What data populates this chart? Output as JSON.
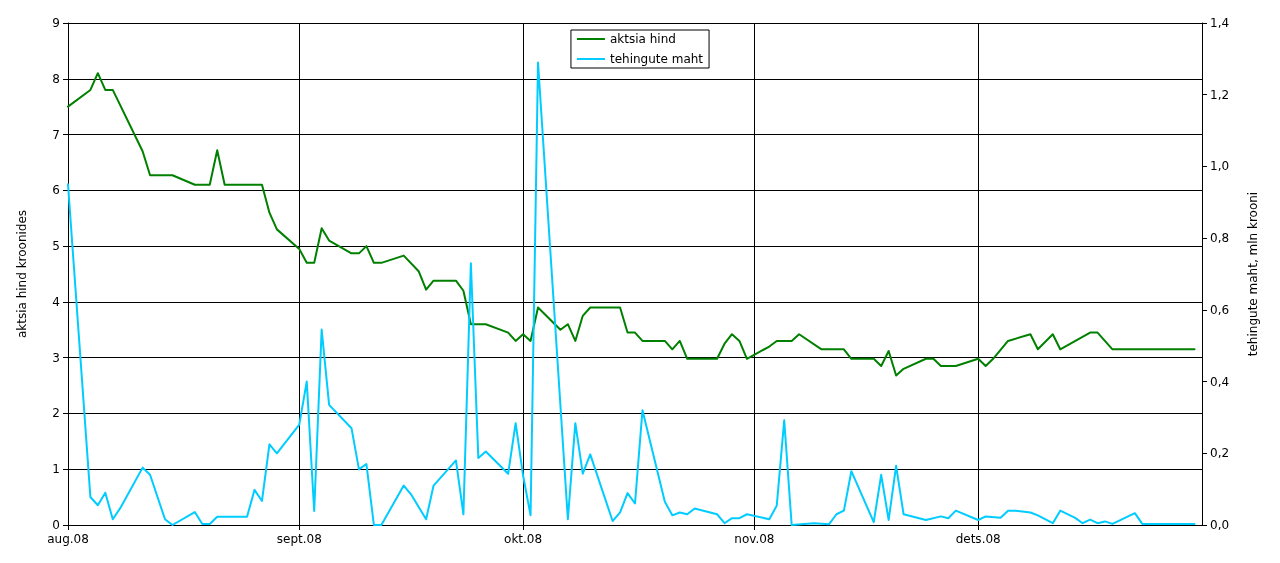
{
  "chart_data": {
    "type": "line",
    "xlabel": null,
    "ylabel": "aktsia hind kroonides",
    "y2label": "tehingute maht, mln krooni",
    "xlim": [
      "2008-08-01",
      "2008-12-31"
    ],
    "xticks": [
      {
        "value": "2008-08-01",
        "label": "aug.08"
      },
      {
        "value": "2008-09-01",
        "label": "sept.08"
      },
      {
        "value": "2008-10-01",
        "label": "okt.08"
      },
      {
        "value": "2008-11-01",
        "label": "nov.08"
      },
      {
        "value": "2008-12-01",
        "label": "dets.08"
      }
    ],
    "ylim": [
      0,
      9
    ],
    "yticks": [
      0,
      1,
      2,
      3,
      4,
      5,
      6,
      7,
      8,
      9
    ],
    "y2lim": [
      0,
      1.4
    ],
    "y2ticks": [
      {
        "value": 0,
        "label": "0,0"
      },
      {
        "value": 0.2,
        "label": "0,2"
      },
      {
        "value": 0.4,
        "label": "0,4"
      },
      {
        "value": 0.6,
        "label": "0,6"
      },
      {
        "value": 0.8,
        "label": "0,8"
      },
      {
        "value": 1.0,
        "label": "1,0"
      },
      {
        "value": 1.2,
        "label": "1,2"
      },
      {
        "value": 1.4,
        "label": "1,4"
      }
    ],
    "grid": true,
    "legend": "top",
    "marker": "none",
    "line_style": "solid",
    "series": [
      {
        "name": "aktsia hind",
        "color": "#008000",
        "x": [
          "2008-08-01",
          "2008-08-04",
          "2008-08-05",
          "2008-08-06",
          "2008-08-07",
          "2008-08-11",
          "2008-08-12",
          "2008-08-15",
          "2008-08-18",
          "2008-08-20",
          "2008-08-21",
          "2008-08-22",
          "2008-08-27",
          "2008-08-28",
          "2008-08-29",
          "2008-09-01",
          "2008-09-02",
          "2008-09-03",
          "2008-09-04",
          "2008-09-05",
          "2008-09-08",
          "2008-09-09",
          "2008-09-10",
          "2008-09-11",
          "2008-09-12",
          "2008-09-15",
          "2008-09-17",
          "2008-09-18",
          "2008-09-19",
          "2008-09-22",
          "2008-09-23",
          "2008-09-24",
          "2008-09-26",
          "2008-09-29",
          "2008-09-30",
          "2008-10-01",
          "2008-10-02",
          "2008-10-03",
          "2008-10-06",
          "2008-10-07",
          "2008-10-08",
          "2008-10-09",
          "2008-10-10",
          "2008-10-14",
          "2008-10-15",
          "2008-10-16",
          "2008-10-17",
          "2008-10-20",
          "2008-10-21",
          "2008-10-22",
          "2008-10-23",
          "2008-10-27",
          "2008-10-28",
          "2008-10-29",
          "2008-10-30",
          "2008-10-31",
          "2008-11-03",
          "2008-11-04",
          "2008-11-06",
          "2008-11-07",
          "2008-11-10",
          "2008-11-13",
          "2008-11-14",
          "2008-11-17",
          "2008-11-18",
          "2008-11-19",
          "2008-11-20",
          "2008-11-21",
          "2008-11-24",
          "2008-11-25",
          "2008-11-26",
          "2008-11-28",
          "2008-12-01",
          "2008-12-02",
          "2008-12-03",
          "2008-12-05",
          "2008-12-08",
          "2008-12-09",
          "2008-12-11",
          "2008-12-12",
          "2008-12-16",
          "2008-12-17",
          "2008-12-19",
          "2008-12-30"
        ],
        "values": [
          7.5,
          7.8,
          8.1,
          7.8,
          7.8,
          6.7,
          6.27,
          6.27,
          6.1,
          6.1,
          6.72,
          6.1,
          6.1,
          5.6,
          5.3,
          4.95,
          4.7,
          4.7,
          5.32,
          5.1,
          4.87,
          4.87,
          5.0,
          4.7,
          4.7,
          4.83,
          4.55,
          4.22,
          4.38,
          4.38,
          4.2,
          3.6,
          3.6,
          3.45,
          3.3,
          3.42,
          3.3,
          3.9,
          3.5,
          3.6,
          3.3,
          3.75,
          3.9,
          3.9,
          3.45,
          3.45,
          3.3,
          3.3,
          3.15,
          3.3,
          2.98,
          2.98,
          3.25,
          3.42,
          3.3,
          2.98,
          3.2,
          3.3,
          3.3,
          3.42,
          3.15,
          3.15,
          2.98,
          2.98,
          2.85,
          3.12,
          2.68,
          2.8,
          2.98,
          2.98,
          2.85,
          2.85,
          2.98,
          2.85,
          2.98,
          3.3,
          3.42,
          3.15,
          3.42,
          3.15,
          3.45,
          3.45,
          3.15,
          3.15
        ]
      },
      {
        "name": "tehingute maht",
        "color": "#00ccff",
        "axis": "y2",
        "x": [
          "2008-08-01",
          "2008-08-04",
          "2008-08-05",
          "2008-08-06",
          "2008-08-07",
          "2008-08-08",
          "2008-08-11",
          "2008-08-12",
          "2008-08-14",
          "2008-08-15",
          "2008-08-18",
          "2008-08-19",
          "2008-08-20",
          "2008-08-21",
          "2008-08-25",
          "2008-08-26",
          "2008-08-27",
          "2008-08-28",
          "2008-08-29",
          "2008-09-01",
          "2008-09-02",
          "2008-09-03",
          "2008-09-04",
          "2008-09-05",
          "2008-09-08",
          "2008-09-09",
          "2008-09-10",
          "2008-09-11",
          "2008-09-12",
          "2008-09-15",
          "2008-09-16",
          "2008-09-18",
          "2008-09-19",
          "2008-09-22",
          "2008-09-23",
          "2008-09-24",
          "2008-09-25",
          "2008-09-26",
          "2008-09-29",
          "2008-09-30",
          "2008-10-01",
          "2008-10-02",
          "2008-10-03",
          "2008-10-07",
          "2008-10-08",
          "2008-10-09",
          "2008-10-10",
          "2008-10-13",
          "2008-10-14",
          "2008-10-15",
          "2008-10-16",
          "2008-10-17",
          "2008-10-20",
          "2008-10-21",
          "2008-10-22",
          "2008-10-23",
          "2008-10-24",
          "2008-10-27",
          "2008-10-28",
          "2008-10-29",
          "2008-10-30",
          "2008-10-31",
          "2008-11-03",
          "2008-11-04",
          "2008-11-05",
          "2008-11-06",
          "2008-11-09",
          "2008-11-11",
          "2008-11-12",
          "2008-11-13",
          "2008-11-14",
          "2008-11-17",
          "2008-11-18",
          "2008-11-19",
          "2008-11-20",
          "2008-11-21",
          "2008-11-24",
          "2008-11-26",
          "2008-11-27",
          "2008-11-28",
          "2008-12-01",
          "2008-12-02",
          "2008-12-04",
          "2008-12-05",
          "2008-12-06",
          "2008-12-08",
          "2008-12-09",
          "2008-12-11",
          "2008-12-12",
          "2008-12-14",
          "2008-12-15",
          "2008-12-16",
          "2008-12-17",
          "2008-12-18",
          "2008-12-19",
          "2008-12-22",
          "2008-12-23",
          "2008-12-30"
        ],
        "values": [
          0.95,
          0.078,
          0.055,
          0.09,
          0.016,
          0.047,
          0.16,
          0.14,
          0.016,
          0,
          0.036,
          0.003,
          0.003,
          0.023,
          0.023,
          0.098,
          0.067,
          0.225,
          0.2,
          0.28,
          0.4,
          0.039,
          0.545,
          0.335,
          0.27,
          0.155,
          0.17,
          0,
          0,
          0.11,
          0.085,
          0.016,
          0.11,
          0.18,
          0.03,
          0.73,
          0.187,
          0.205,
          0.143,
          0.284,
          0.138,
          0.027,
          1.29,
          0.016,
          0.284,
          0.143,
          0.197,
          0.011,
          0.035,
          0.089,
          0.06,
          0.32,
          0.065,
          0.027,
          0.035,
          0.03,
          0.046,
          0.03,
          0.005,
          0.019,
          0.019,
          0.03,
          0.016,
          0.054,
          0.292,
          0,
          0.005,
          0.002,
          0.03,
          0.04,
          0.15,
          0.008,
          0.14,
          0.014,
          0.165,
          0.03,
          0.014,
          0.024,
          0.019,
          0.04,
          0.014,
          0.024,
          0.02,
          0.04,
          0.04,
          0.035,
          0.027,
          0.005,
          0.04,
          0.02,
          0.005,
          0.015,
          0.005,
          0.01,
          0.003,
          0.033,
          0.003,
          0.003
        ]
      }
    ]
  }
}
